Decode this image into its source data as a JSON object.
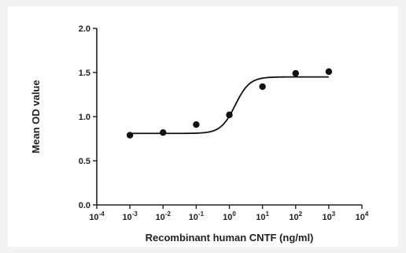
{
  "chart_data": {
    "type": "scatter",
    "xscale": "log",
    "xlabel": "Recombinant human CNTF (ng/ml)",
    "ylabel": "Mean OD value",
    "xlim": [
      0.0001,
      10000
    ],
    "ylim": [
      0.0,
      2.0
    ],
    "xticks": [
      {
        "value": 0.0001,
        "base": "10",
        "exp": "-4"
      },
      {
        "value": 0.001,
        "base": "10",
        "exp": "-3"
      },
      {
        "value": 0.01,
        "base": "10",
        "exp": "-2"
      },
      {
        "value": 0.1,
        "base": "10",
        "exp": "-1"
      },
      {
        "value": 1,
        "base": "10",
        "exp": "0"
      },
      {
        "value": 10,
        "base": "10",
        "exp": "1"
      },
      {
        "value": 100,
        "base": "10",
        "exp": "2"
      },
      {
        "value": 1000,
        "base": "10",
        "exp": "3"
      },
      {
        "value": 10000,
        "base": "10",
        "exp": "4"
      }
    ],
    "yticks": [
      {
        "value": 0.0,
        "label": "0.0"
      },
      {
        "value": 0.5,
        "label": "0.5"
      },
      {
        "value": 1.0,
        "label": "1.0"
      },
      {
        "value": 1.5,
        "label": "1.5"
      },
      {
        "value": 2.0,
        "label": "2.0"
      }
    ],
    "points": [
      {
        "x": 0.001,
        "y": 0.79
      },
      {
        "x": 0.01,
        "y": 0.82
      },
      {
        "x": 0.1,
        "y": 0.91
      },
      {
        "x": 1,
        "y": 1.02
      },
      {
        "x": 10,
        "y": 1.34
      },
      {
        "x": 100,
        "y": 1.49
      },
      {
        "x": 1000,
        "y": 1.51
      }
    ],
    "fit_curve": {
      "model": "four-parameter logistic",
      "bottom": 0.81,
      "top": 1.45,
      "ec50": 1.5,
      "hill": 2.0,
      "x_range": [
        0.001,
        1000
      ]
    },
    "grid": false,
    "legend": "none",
    "colors": {
      "points": "#111111",
      "curve": "#111111",
      "axes": "#222222"
    }
  }
}
